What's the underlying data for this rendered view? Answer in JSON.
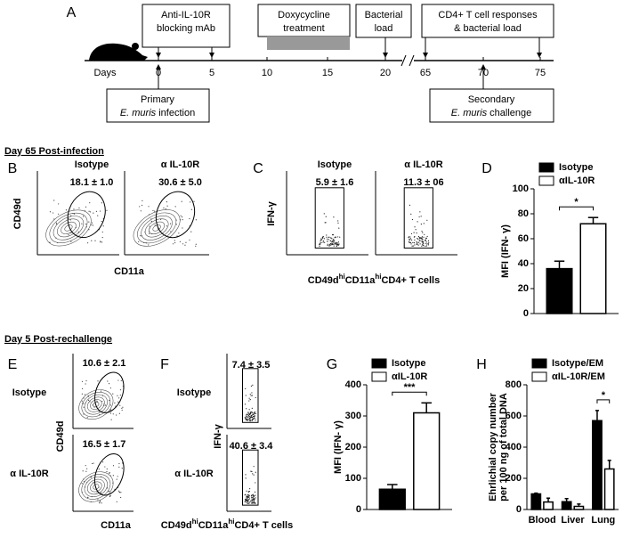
{
  "panel_a": {
    "letter": "A",
    "top_boxes": [
      [
        "Anti-IL-10R",
        "blocking mAb"
      ],
      [
        "Doxycycline",
        "treatment"
      ],
      [
        "Bacterial",
        "load"
      ],
      [
        "CD4+ T cell responses",
        "& bacterial load"
      ]
    ],
    "days_label": "Days",
    "days": [
      0,
      5,
      10,
      15,
      20,
      65,
      70,
      75
    ],
    "primary": [
      "Primary",
      "E. muris",
      "infection"
    ],
    "secondary": [
      "Secondary",
      "E. muris",
      "challenge"
    ]
  },
  "section_1": "Day 65 Post-infection",
  "section_2": "Day 5 Post-rechallenge",
  "panel_b": {
    "letter": "B",
    "columns": [
      "Isotype",
      "α IL-10R"
    ],
    "gates": [
      "18.1 ± 1.0",
      "30.6 ± 5.0"
    ],
    "y_label": "CD49d",
    "x_label": "CD11a"
  },
  "panel_c": {
    "letter": "C",
    "columns": [
      "Isotype",
      "α IL-10R"
    ],
    "gates": [
      "5.9 ± 1.6",
      "11.3 ± 06"
    ],
    "y_label": "IFN-γ",
    "x_label": [
      "CD49d",
      "hi",
      "CD11a",
      "hi",
      "CD4+ T cells"
    ]
  },
  "panel_e": {
    "letter": "E",
    "rows": [
      "Isotype",
      "α IL-10R"
    ],
    "gates": [
      "10.6 ± 2.1",
      "16.5 ± 1.7"
    ],
    "y_label": "CD49d",
    "x_label": "CD11a"
  },
  "panel_f": {
    "letter": "F",
    "rows": [
      "Isotype",
      "α IL-10R"
    ],
    "gates": [
      "7.4 ± 3.5",
      "40.6 ± 3.4"
    ],
    "y_label": "IFN-γ",
    "x_label": [
      "CD49d",
      "hi",
      "CD11a",
      "hi",
      "CD4+ T cells"
    ]
  },
  "chart_data": [
    {
      "type": "bar",
      "letter": "D",
      "ylabel": [
        "MFI (IFN- γ)"
      ],
      "categories": [
        null
      ],
      "series": [
        {
          "name": "Isotype",
          "color": "#000000",
          "values": [
            36
          ],
          "errors": [
            6
          ]
        },
        {
          "name": "αIL-10R",
          "color": "#ffffff",
          "values": [
            72
          ],
          "errors": [
            5
          ]
        }
      ],
      "ylim": [
        0,
        100
      ],
      "yticks": [
        0,
        20,
        40,
        60,
        80,
        100
      ],
      "significance": "*"
    },
    {
      "type": "bar",
      "letter": "G",
      "ylabel": [
        "MFI (IFN- γ)"
      ],
      "categories": [
        null
      ],
      "series": [
        {
          "name": "Isotype",
          "color": "#000000",
          "values": [
            65
          ],
          "errors": [
            15
          ]
        },
        {
          "name": "αIL-10R",
          "color": "#ffffff",
          "values": [
            310
          ],
          "errors": [
            32
          ]
        }
      ],
      "ylim": [
        0,
        400
      ],
      "yticks": [
        0,
        100,
        200,
        300,
        400
      ],
      "significance": "***"
    },
    {
      "type": "bar",
      "letter": "H",
      "ylabel": [
        "Ehrlichial copy number",
        "per 100 ng of total DNA"
      ],
      "categories": [
        "Blood",
        "Liver",
        "Lung"
      ],
      "series": [
        {
          "name": "Isotype/EM",
          "color": "#000000",
          "values": [
            100,
            50,
            570
          ],
          "errors": [
            5,
            20,
            65
          ]
        },
        {
          "name": "αIL-10R/EM",
          "color": "#ffffff",
          "values": [
            48,
            20,
            260
          ],
          "errors": [
            25,
            15,
            55
          ]
        }
      ],
      "ylim": [
        0,
        800
      ],
      "yticks": [
        0,
        200,
        400,
        600,
        800
      ],
      "significance": "*"
    }
  ]
}
